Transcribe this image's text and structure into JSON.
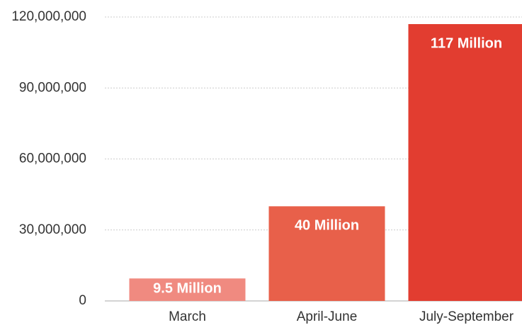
{
  "chart_data": {
    "type": "bar",
    "categories": [
      "March",
      "April-June",
      "July-September"
    ],
    "values": [
      9500000,
      40000000,
      117000000
    ],
    "value_labels": [
      "9.5 Million",
      "40 Million",
      "117 Million"
    ],
    "colors": [
      "#f08a80",
      "#e8604a",
      "#e23d30"
    ],
    "ylim": [
      0,
      120000000
    ],
    "yticks": [
      0,
      {
        "value": 30000000,
        "label": "30,000,000"
      },
      {
        "value": 60000000,
        "label": "60,000,000"
      },
      {
        "value": 90000000,
        "label": "90,000,000"
      },
      {
        "value": 120000000,
        "label": "120,000,000"
      }
    ],
    "grid": true
  }
}
